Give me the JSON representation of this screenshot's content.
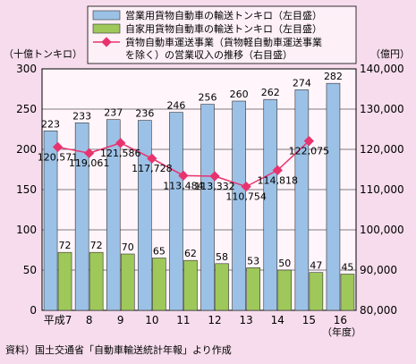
{
  "chart_data": {
    "type": "bar",
    "categories": [
      "平成7",
      "8",
      "9",
      "10",
      "11",
      "12",
      "13",
      "14",
      "15",
      "16"
    ],
    "series": [
      {
        "name": "営業用貨物自動車の輸送トンキロ（左目盛）",
        "values": [
          223,
          233,
          237,
          236,
          246,
          256,
          260,
          262,
          274,
          282
        ],
        "color": "#9cc1e6",
        "axis": "left"
      },
      {
        "name": "自家用貨物自動車の輸送トンキロ（左目盛）",
        "values": [
          72,
          72,
          70,
          65,
          62,
          58,
          53,
          50,
          47,
          45
        ],
        "color": "#9ec85a",
        "axis": "left"
      },
      {
        "name_lines": [
          "貨物自動車運送事業（貨物軽自動車運送事業",
          "を除く）の営業収入の推移（右目盛）"
        ],
        "values": [
          120571,
          119061,
          121586,
          117728,
          113484,
          113332,
          110754,
          114818,
          122075,
          null
        ],
        "value_labels": [
          "120,571",
          "119,061",
          "121,586",
          "117,728",
          "113,484",
          "113,332",
          "110,754",
          "114,818",
          "122,075",
          ""
        ],
        "color": "#e8336e",
        "axis": "right",
        "type": "line"
      }
    ],
    "y_left": {
      "label": "（十億トンキロ）",
      "ticks": [
        0,
        50,
        100,
        150,
        200,
        250,
        300
      ],
      "ylim": [
        0,
        300
      ]
    },
    "y_right": {
      "label": "（億円）",
      "ticks": [
        80000,
        90000,
        100000,
        110000,
        120000,
        130000,
        140000
      ],
      "tick_labels": [
        "80,000",
        "90,000",
        "100,000",
        "110,000",
        "120,000",
        "130,000",
        "140,000"
      ],
      "ylim": [
        80000,
        140000
      ]
    },
    "x_unit": "（年度）",
    "legend_position": "top",
    "source": "資料）国土交通省「自動車輸送統計年報」より作成"
  }
}
